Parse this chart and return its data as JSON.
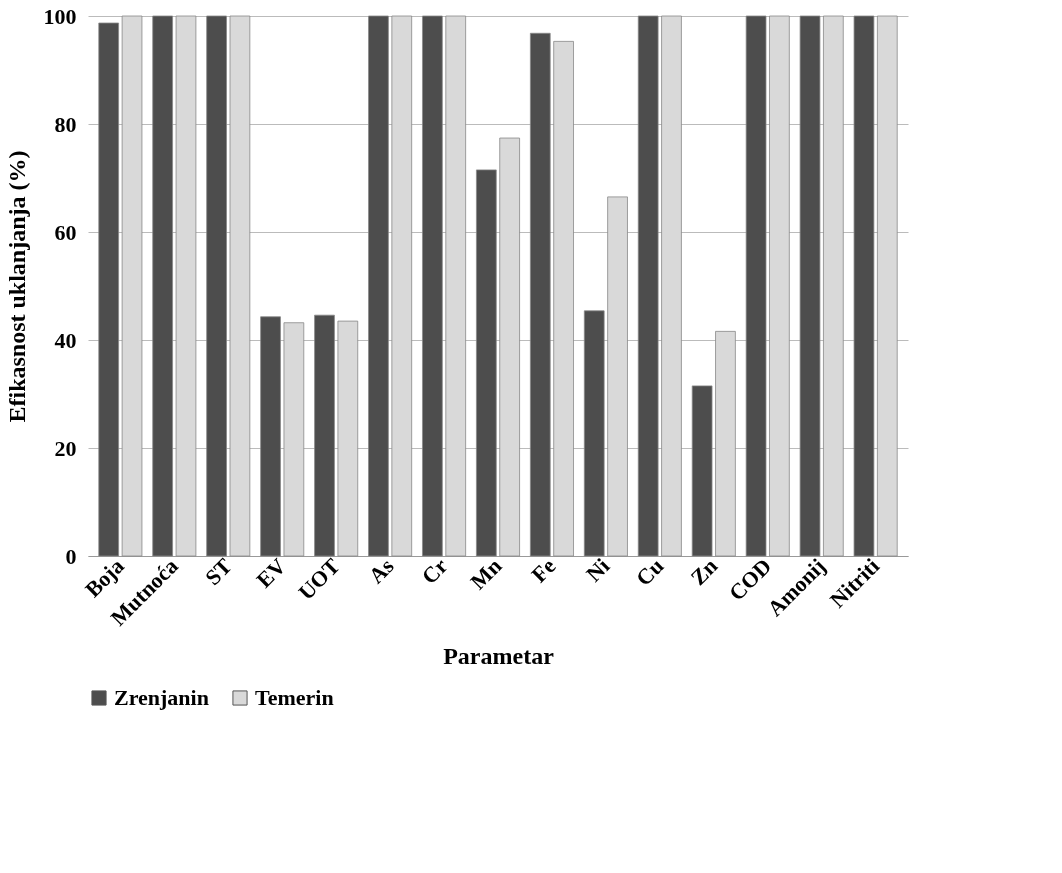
{
  "chart_data": {
    "type": "bar",
    "xlabel": "Parametar",
    "ylabel": "Efikasnost uklanjanja (%)",
    "categories": [
      "Boja",
      "Mutnoća",
      "ST",
      "EV",
      "UOT",
      "As",
      "Cr",
      "Mn",
      "Fe",
      "Ni",
      "Cu",
      "Zn",
      "COD",
      "Amonij",
      "Nitriti"
    ],
    "series": [
      {
        "name": "Zrenjanin",
        "color": "#4d4d4d",
        "values": [
          98.7,
          100,
          100,
          44.3,
          44.6,
          100,
          100,
          71.5,
          96.8,
          45.4,
          100,
          31.5,
          100,
          100,
          100
        ]
      },
      {
        "name": "Temerin",
        "color": "#d9d9d9",
        "values": [
          100,
          100,
          100,
          43.2,
          43.5,
          100,
          100,
          77.4,
          95.3,
          66.5,
          100,
          41.6,
          100,
          100,
          100
        ]
      }
    ],
    "ylim": [
      0,
      100
    ],
    "yticks": [
      0,
      20,
      40,
      60,
      80,
      100
    ],
    "grid": "y",
    "legend": "bottom"
  }
}
